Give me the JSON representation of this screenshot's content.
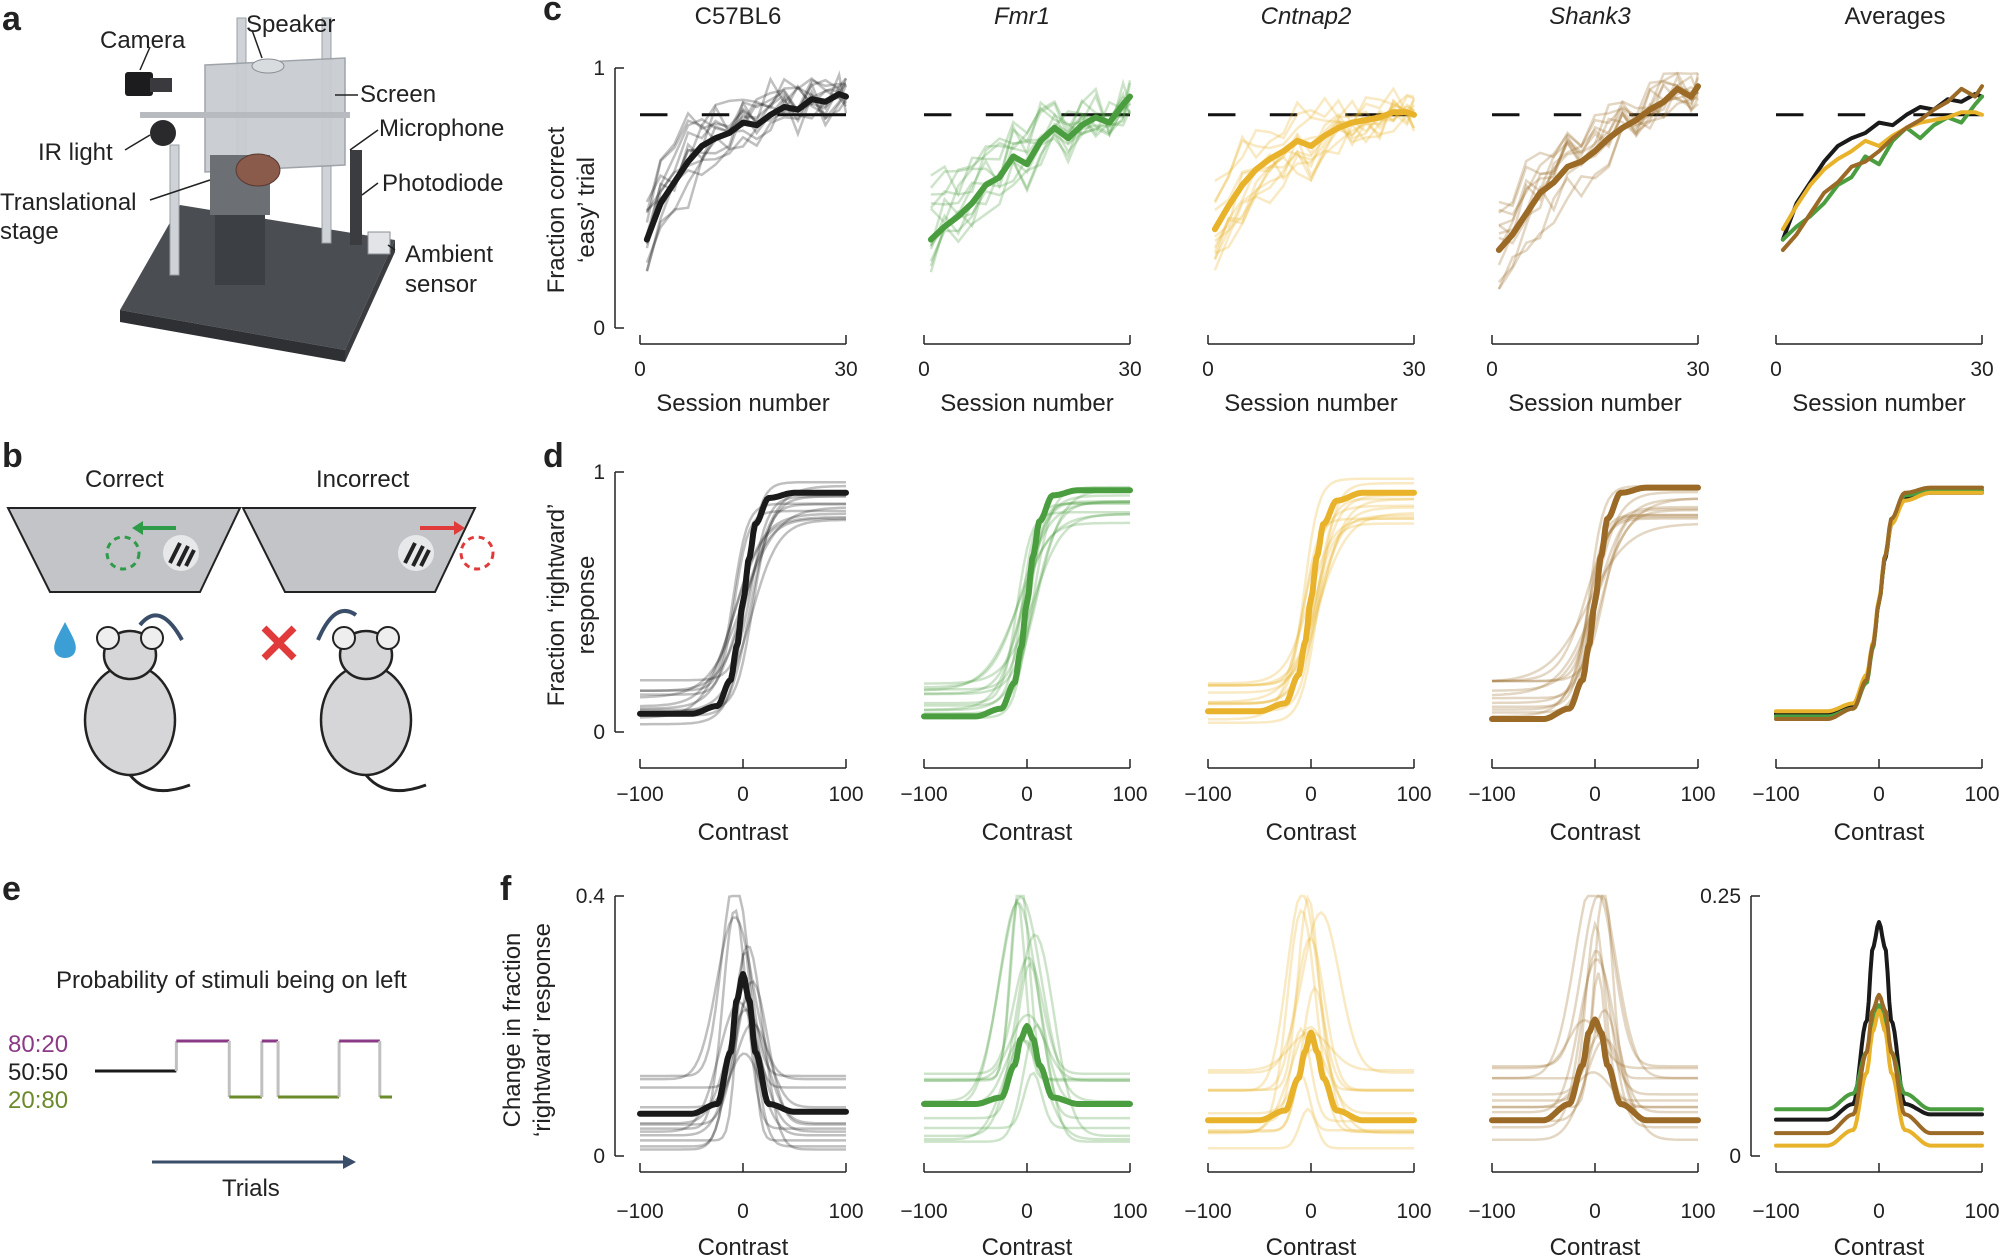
{
  "panels": {
    "a": {
      "label": "a",
      "callouts": [
        "Camera",
        "Speaker",
        "Screen",
        "Microphone",
        "IR light",
        "Photodiode",
        "Translational",
        "stage",
        "Ambient",
        "sensor"
      ]
    },
    "b": {
      "label": "b",
      "correct": "Correct",
      "incorrect": "Incorrect"
    },
    "c": {
      "label": "c"
    },
    "d": {
      "label": "d"
    },
    "e": {
      "label": "e",
      "title": "Probability of stimuli being on left",
      "levels": [
        "80:20",
        "50:50",
        "20:80"
      ],
      "xlabel": "Trials",
      "sequence": [
        {
          "level": "50:50",
          "start": 0,
          "end": 20
        },
        {
          "level": "80:20",
          "start": 20,
          "end": 33
        },
        {
          "level": "20:80",
          "start": 33,
          "end": 41
        },
        {
          "level": "80:20",
          "start": 41,
          "end": 45
        },
        {
          "level": "20:80",
          "start": 45,
          "end": 60
        },
        {
          "level": "80:20",
          "start": 60,
          "end": 70
        },
        {
          "level": "20:80",
          "start": 70,
          "end": 73
        }
      ]
    },
    "f": {
      "label": "f"
    }
  },
  "colors": {
    "C57BL6": "#1a1a1a",
    "Fmr1": "#4a9e3f",
    "Cntnap2": "#e8b32b",
    "Shank3": "#9a6a26",
    "correct": "#2d9b48",
    "incorrect": "#e03a3a",
    "p8020": "#8b3a86",
    "p5050": "#1a1a1a",
    "p2080": "#6b8a2a"
  },
  "groups": [
    "C57BL6",
    "Fmr1",
    "Cntnap2",
    "Shank3",
    "Averages"
  ],
  "chart_data": [
    {
      "type": "line",
      "panel": "c",
      "ylabel_lines": [
        "Fraction correct",
        "‘easy’ trial"
      ],
      "xlabel": "Session number",
      "xlim": [
        0,
        30
      ],
      "ylim": [
        0,
        1
      ],
      "xticks": [
        "0",
        "30"
      ],
      "yticks": [
        "0",
        "1"
      ],
      "reference_line": 0.82,
      "series": [
        {
          "name": "C57BL6",
          "x": [
            1,
            3,
            5,
            7,
            9,
            11,
            13,
            15,
            17,
            19,
            21,
            23,
            25,
            27,
            29,
            30
          ],
          "y": [
            0.34,
            0.48,
            0.56,
            0.64,
            0.7,
            0.73,
            0.75,
            0.79,
            0.78,
            0.82,
            0.85,
            0.84,
            0.88,
            0.87,
            0.9,
            0.89
          ]
        },
        {
          "name": "Fmr1",
          "x": [
            1,
            3,
            5,
            7,
            9,
            11,
            13,
            15,
            17,
            19,
            21,
            23,
            25,
            27,
            29,
            30
          ],
          "y": [
            0.34,
            0.39,
            0.43,
            0.48,
            0.55,
            0.58,
            0.66,
            0.63,
            0.72,
            0.77,
            0.73,
            0.78,
            0.81,
            0.79,
            0.86,
            0.89
          ]
        },
        {
          "name": "Cntnap2",
          "x": [
            1,
            3,
            5,
            7,
            9,
            11,
            13,
            15,
            17,
            19,
            21,
            23,
            25,
            27,
            29,
            30
          ],
          "y": [
            0.38,
            0.47,
            0.55,
            0.61,
            0.65,
            0.68,
            0.72,
            0.7,
            0.74,
            0.77,
            0.79,
            0.8,
            0.81,
            0.83,
            0.83,
            0.82
          ]
        },
        {
          "name": "Shank3",
          "x": [
            1,
            3,
            5,
            7,
            9,
            11,
            13,
            15,
            17,
            19,
            21,
            23,
            25,
            27,
            29,
            30
          ],
          "y": [
            0.3,
            0.36,
            0.44,
            0.52,
            0.56,
            0.62,
            0.64,
            0.68,
            0.73,
            0.77,
            0.8,
            0.84,
            0.87,
            0.92,
            0.89,
            0.93
          ]
        }
      ]
    },
    {
      "type": "line",
      "panel": "d",
      "ylabel_lines": [
        "Fraction ‘rightward’",
        "response"
      ],
      "xlabel": "Contrast",
      "xlim": [
        -100,
        100
      ],
      "ylim": [
        0,
        1
      ],
      "xticks": [
        "−100",
        "0",
        "100"
      ],
      "yticks": [
        "0",
        "1"
      ],
      "series": [
        {
          "name": "C57BL6",
          "x": [
            -100,
            -50,
            -25,
            -12,
            -6,
            0,
            6,
            12,
            25,
            50,
            100
          ],
          "y": [
            0.07,
            0.07,
            0.1,
            0.2,
            0.33,
            0.5,
            0.67,
            0.8,
            0.9,
            0.92,
            0.92
          ]
        },
        {
          "name": "Fmr1",
          "x": [
            -100,
            -50,
            -25,
            -12,
            -6,
            0,
            6,
            12,
            25,
            50,
            100
          ],
          "y": [
            0.06,
            0.06,
            0.09,
            0.19,
            0.32,
            0.5,
            0.68,
            0.81,
            0.91,
            0.93,
            0.93
          ]
        },
        {
          "name": "Cntnap2",
          "x": [
            -100,
            -50,
            -25,
            -12,
            -6,
            0,
            6,
            12,
            25,
            50,
            100
          ],
          "y": [
            0.08,
            0.08,
            0.11,
            0.22,
            0.34,
            0.51,
            0.68,
            0.8,
            0.89,
            0.92,
            0.92
          ]
        },
        {
          "name": "Shank3",
          "x": [
            -100,
            -50,
            -25,
            -12,
            -6,
            0,
            6,
            12,
            25,
            50,
            100
          ],
          "y": [
            0.05,
            0.05,
            0.09,
            0.2,
            0.33,
            0.5,
            0.68,
            0.82,
            0.92,
            0.94,
            0.94
          ]
        }
      ]
    },
    {
      "type": "line",
      "panel": "f",
      "ylabel_lines": [
        "Change in fraction",
        "‘rightward’ response"
      ],
      "xlabel": "Contrast",
      "xlim": [
        -100,
        100
      ],
      "ylim": [
        0,
        0.4
      ],
      "ylim_averages": [
        0,
        0.25
      ],
      "xticks": [
        "−100",
        "0",
        "100"
      ],
      "yticks": [
        "0",
        "0.4"
      ],
      "yticks_averages": [
        "0",
        "0.25"
      ],
      "series": [
        {
          "name": "C57BL6",
          "x": [
            -100,
            -50,
            -25,
            -12,
            -6,
            0,
            6,
            12,
            25,
            50,
            100
          ],
          "y": [
            0.065,
            0.065,
            0.08,
            0.16,
            0.24,
            0.28,
            0.24,
            0.16,
            0.08,
            0.068,
            0.068
          ]
        },
        {
          "name": "Fmr1",
          "x": [
            -100,
            -50,
            -25,
            -12,
            -6,
            0,
            6,
            12,
            25,
            50,
            100
          ],
          "y": [
            0.08,
            0.08,
            0.09,
            0.14,
            0.18,
            0.2,
            0.18,
            0.14,
            0.09,
            0.08,
            0.08
          ]
        },
        {
          "name": "Cntnap2",
          "x": [
            -100,
            -50,
            -25,
            -12,
            -6,
            0,
            6,
            12,
            25,
            50,
            100
          ],
          "y": [
            0.055,
            0.055,
            0.07,
            0.12,
            0.16,
            0.19,
            0.16,
            0.12,
            0.07,
            0.055,
            0.055
          ]
        },
        {
          "name": "Shank3",
          "x": [
            -100,
            -50,
            -25,
            -12,
            -6,
            0,
            6,
            12,
            25,
            50,
            100
          ],
          "y": [
            0.055,
            0.055,
            0.08,
            0.14,
            0.19,
            0.21,
            0.19,
            0.14,
            0.08,
            0.055,
            0.055
          ]
        }
      ],
      "averages": [
        {
          "name": "C57BL6",
          "x": [
            -100,
            -50,
            -25,
            -12,
            -6,
            0,
            6,
            12,
            25,
            50,
            100
          ],
          "y": [
            0.035,
            0.035,
            0.05,
            0.13,
            0.2,
            0.225,
            0.2,
            0.13,
            0.05,
            0.04,
            0.04
          ]
        },
        {
          "name": "Fmr1",
          "x": [
            -100,
            -50,
            -25,
            -12,
            -6,
            0,
            6,
            12,
            25,
            50,
            100
          ],
          "y": [
            0.045,
            0.045,
            0.06,
            0.1,
            0.13,
            0.145,
            0.13,
            0.1,
            0.06,
            0.045,
            0.045
          ]
        },
        {
          "name": "Cntnap2",
          "x": [
            -100,
            -50,
            -25,
            -12,
            -6,
            0,
            6,
            12,
            25,
            50,
            100
          ],
          "y": [
            0.01,
            0.01,
            0.025,
            0.08,
            0.12,
            0.14,
            0.12,
            0.08,
            0.025,
            0.01,
            0.01
          ]
        },
        {
          "name": "Shank3",
          "x": [
            -100,
            -50,
            -25,
            -12,
            -6,
            0,
            6,
            12,
            25,
            50,
            100
          ],
          "y": [
            0.022,
            0.022,
            0.04,
            0.1,
            0.14,
            0.155,
            0.14,
            0.1,
            0.04,
            0.022,
            0.022
          ]
        }
      ]
    }
  ]
}
